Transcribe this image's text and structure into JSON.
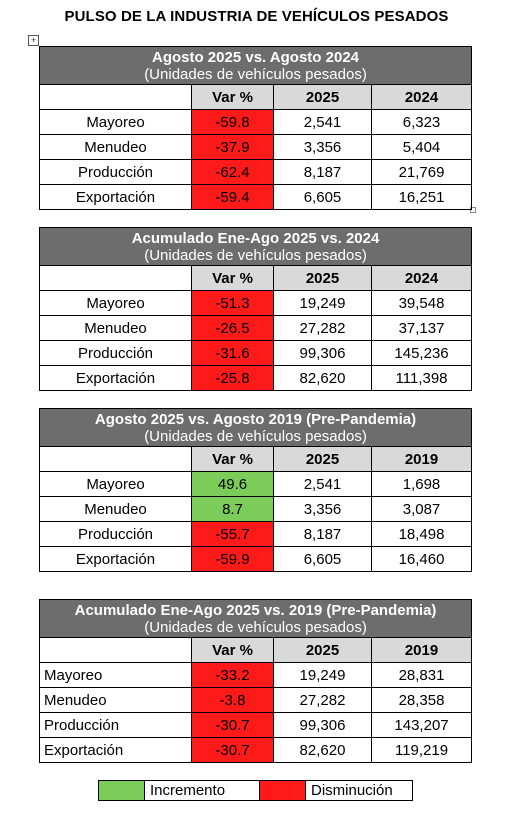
{
  "title": "PULSO DE LA INDUSTRIA DE VEHÍCULOS PESADOS",
  "anchor_glyph": "+",
  "colors": {
    "header_bg": "#6d6d6d",
    "col_header_bg": "#d9d9d9",
    "increase": "#7ccc5a",
    "decrease": "#ff1a1a"
  },
  "tables": [
    {
      "title": "Agosto 2025 vs. Agosto 2024",
      "subtitle": "(Unidades de vehículos pesados)",
      "columns": [
        "",
        "Var %",
        "2025",
        "2024"
      ],
      "rows": [
        {
          "label": "Mayoreo",
          "var": "-59.8",
          "status": "decrease",
          "v1": "2,541",
          "v2": "6,323"
        },
        {
          "label": "Menudeo",
          "var": "-37.9",
          "status": "decrease",
          "v1": "3,356",
          "v2": "5,404"
        },
        {
          "label": "Producción",
          "var": "-62.4",
          "status": "decrease",
          "v1": "8,187",
          "v2": "21,769"
        },
        {
          "label": "Exportación",
          "var": "-59.4",
          "status": "decrease",
          "v1": "6,605",
          "v2": "16,251"
        }
      ]
    },
    {
      "title": "Acumulado Ene-Ago 2025 vs. 2024",
      "subtitle": "(Unidades de vehículos pesados)",
      "columns": [
        "",
        "Var %",
        "2025",
        "2024"
      ],
      "rows": [
        {
          "label": "Mayoreo",
          "var": "-51.3",
          "status": "decrease",
          "v1": "19,249",
          "v2": "39,548"
        },
        {
          "label": "Menudeo",
          "var": "-26.5",
          "status": "decrease",
          "v1": "27,282",
          "v2": "37,137"
        },
        {
          "label": "Producción",
          "var": "-31.6",
          "status": "decrease",
          "v1": "99,306",
          "v2": "145,236"
        },
        {
          "label": "Exportación",
          "var": "-25.8",
          "status": "decrease",
          "v1": "82,620",
          "v2": "111,398"
        }
      ]
    },
    {
      "title": "Agosto 2025 vs. Agosto 2019 (Pre-Pandemia)",
      "subtitle": "(Unidades de vehículos pesados)",
      "columns": [
        "",
        "Var %",
        "2025",
        "2019"
      ],
      "rows": [
        {
          "label": "Mayoreo",
          "var": "49.6",
          "status": "increase",
          "v1": "2,541",
          "v2": "1,698"
        },
        {
          "label": "Menudeo",
          "var": "8.7",
          "status": "increase",
          "v1": "3,356",
          "v2": "3,087"
        },
        {
          "label": "Producción",
          "var": "-55.7",
          "status": "decrease",
          "v1": "8,187",
          "v2": "18,498"
        },
        {
          "label": "Exportación",
          "var": "-59.9",
          "status": "decrease",
          "v1": "6,605",
          "v2": "16,460"
        }
      ]
    },
    {
      "title": "Acumulado Ene-Ago 2025 vs. 2019 (Pre-Pandemia)",
      "subtitle": "(Unidades de vehículos pesados)",
      "columns": [
        "",
        "Var %",
        "2025",
        "2019"
      ],
      "rows": [
        {
          "label": "Mayoreo",
          "var": "-33.2",
          "status": "decrease",
          "v1": "19,249",
          "v2": "28,831"
        },
        {
          "label": "Menudeo",
          "var": "-3.8",
          "status": "decrease",
          "v1": "27,282",
          "v2": "28,358"
        },
        {
          "label": "Producción",
          "var": "-30.7",
          "status": "decrease",
          "v1": "99,306",
          "v2": "143,207"
        },
        {
          "label": "Exportación",
          "var": "-30.7",
          "status": "decrease",
          "v1": "82,620",
          "v2": "119,219"
        }
      ]
    }
  ],
  "legend": {
    "increase_label": "Incremento",
    "decrease_label": "Disminución"
  }
}
